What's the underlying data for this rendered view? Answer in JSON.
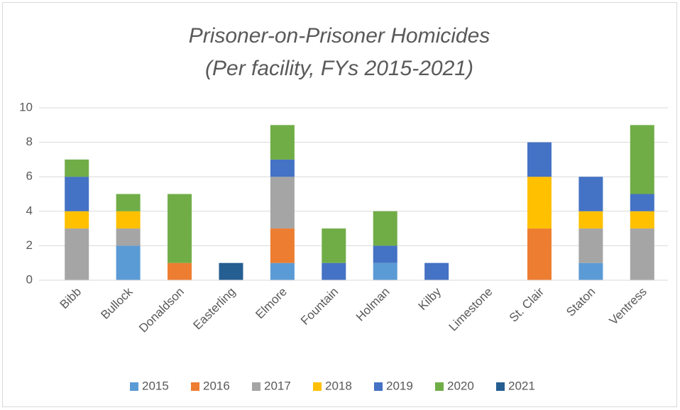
{
  "chart_data": {
    "type": "stacked_bar",
    "title": [
      "Prisoner-on-Prisoner Homicides",
      "(Per facility, FYs 2015-2021)"
    ],
    "categories": [
      "Bibb",
      "Bullock",
      "Donaldson",
      "Easterling",
      "Elmore",
      "Fountain",
      "Holman",
      "Kilby",
      "Limestone",
      "St. Clair",
      "Staton",
      "Ventress"
    ],
    "series": [
      {
        "name": "2015",
        "color": "#5b9bd5",
        "values": [
          0,
          2,
          0,
          0,
          1,
          0,
          1,
          0,
          0,
          0,
          1,
          0
        ]
      },
      {
        "name": "2016",
        "color": "#ed7d31",
        "values": [
          0,
          0,
          1,
          0,
          2,
          0,
          0,
          0,
          0,
          3,
          0,
          0
        ]
      },
      {
        "name": "2017",
        "color": "#a5a5a5",
        "values": [
          3,
          1,
          0,
          0,
          3,
          0,
          0,
          0,
          0,
          0,
          2,
          3
        ]
      },
      {
        "name": "2018",
        "color": "#ffc000",
        "values": [
          1,
          1,
          0,
          0,
          0,
          0,
          0,
          0,
          0,
          3,
          1,
          1
        ]
      },
      {
        "name": "2019",
        "color": "#4472c4",
        "values": [
          2,
          0,
          0,
          0,
          1,
          1,
          1,
          1,
          0,
          2,
          2,
          1
        ]
      },
      {
        "name": "2020",
        "color": "#70ad47",
        "values": [
          1,
          1,
          4,
          0,
          2,
          2,
          2,
          0,
          0,
          0,
          0,
          4
        ]
      },
      {
        "name": "2021",
        "color": "#255e91",
        "values": [
          0,
          0,
          0,
          1,
          0,
          0,
          0,
          0,
          0,
          0,
          0,
          0
        ]
      }
    ],
    "ylim": [
      0,
      10
    ],
    "yticks": [
      0,
      2,
      4,
      6,
      8,
      10
    ],
    "grid": true,
    "legend": "bottom"
  }
}
